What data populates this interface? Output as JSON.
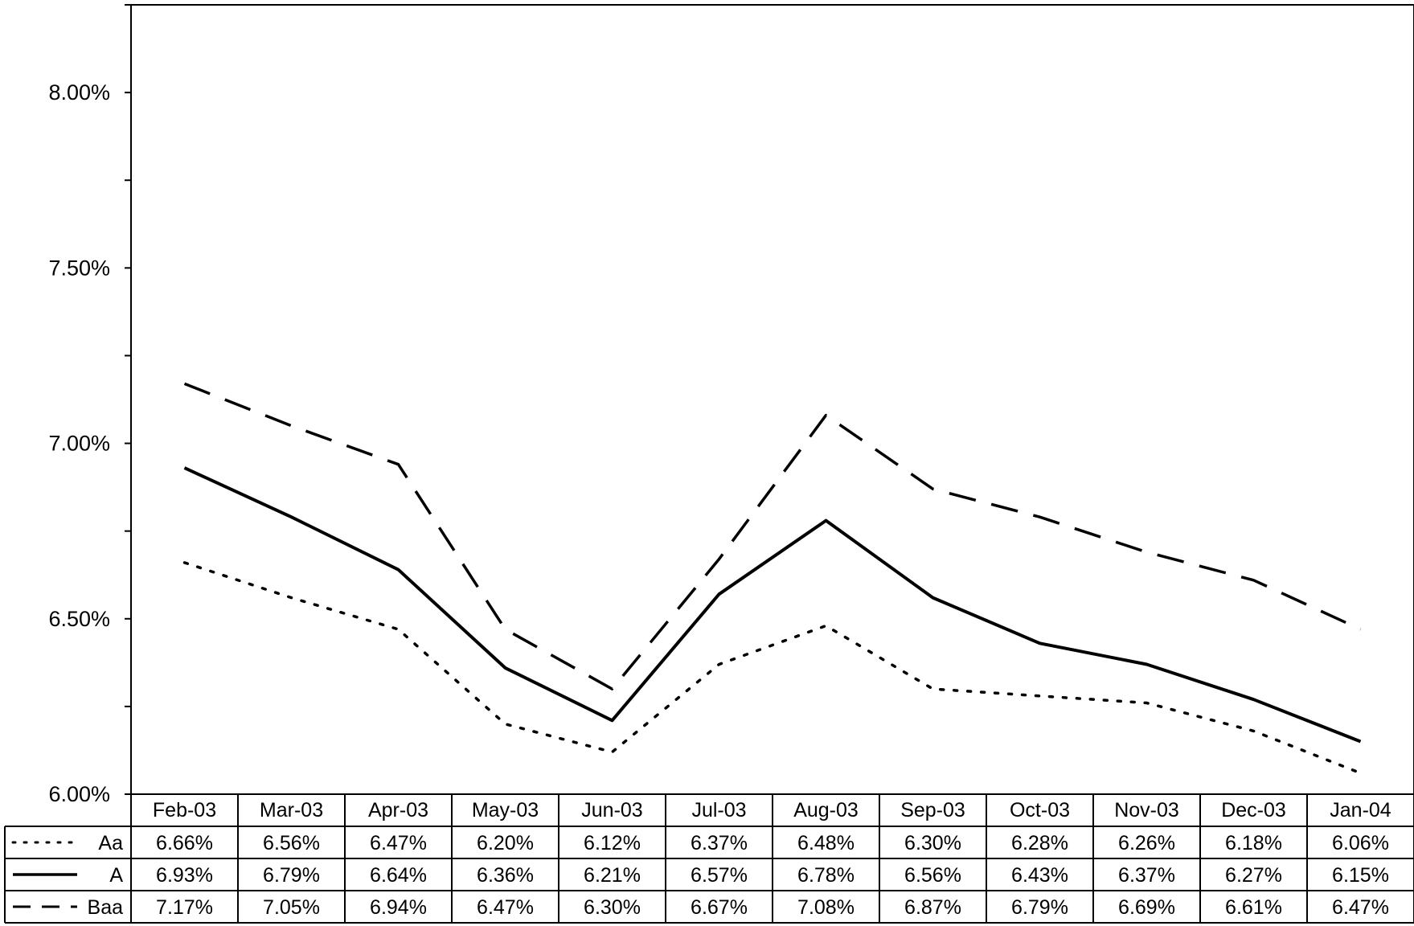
{
  "chart_data": {
    "type": "line",
    "title": "",
    "xlabel": "",
    "ylabel": "",
    "categories": [
      "Feb-03",
      "Mar-03",
      "Apr-03",
      "May-03",
      "Jun-03",
      "Jul-03",
      "Aug-03",
      "Sep-03",
      "Oct-03",
      "Nov-03",
      "Dec-03",
      "Jan-04"
    ],
    "ylim": [
      6.0,
      8.25
    ],
    "y_ticks": [
      6.0,
      6.5,
      7.0,
      7.5,
      8.0
    ],
    "y_tick_labels": [
      "6.00%",
      "6.50%",
      "7.00%",
      "7.50%",
      "8.00%"
    ],
    "y_minor_step": 0.25,
    "grid": false,
    "legend": "data-table-left",
    "series": [
      {
        "name": "Aa",
        "style": "dotted",
        "values": [
          6.66,
          6.56,
          6.47,
          6.2,
          6.12,
          6.37,
          6.48,
          6.3,
          6.28,
          6.26,
          6.18,
          6.06
        ],
        "labels": [
          "6.66%",
          "6.56%",
          "6.47%",
          "6.20%",
          "6.12%",
          "6.37%",
          "6.48%",
          "6.30%",
          "6.28%",
          "6.26%",
          "6.18%",
          "6.06%"
        ]
      },
      {
        "name": "A",
        "style": "solid",
        "values": [
          6.93,
          6.79,
          6.64,
          6.36,
          6.21,
          6.57,
          6.78,
          6.56,
          6.43,
          6.37,
          6.27,
          6.15
        ],
        "labels": [
          "6.93%",
          "6.79%",
          "6.64%",
          "6.36%",
          "6.21%",
          "6.57%",
          "6.78%",
          "6.56%",
          "6.43%",
          "6.37%",
          "6.27%",
          "6.15%"
        ]
      },
      {
        "name": "Baa",
        "style": "dashed",
        "values": [
          7.17,
          7.05,
          6.94,
          6.47,
          6.3,
          6.67,
          7.08,
          6.87,
          6.79,
          6.69,
          6.61,
          6.47
        ],
        "labels": [
          "7.17%",
          "7.05%",
          "6.94%",
          "6.47%",
          "6.30%",
          "6.67%",
          "7.08%",
          "6.87%",
          "6.79%",
          "6.69%",
          "6.61%",
          "6.47%"
        ]
      }
    ]
  },
  "colors": {
    "line": "#000000",
    "background": "#ffffff"
  }
}
